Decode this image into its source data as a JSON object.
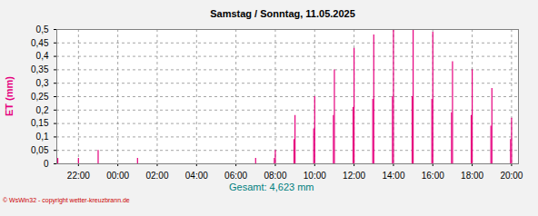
{
  "chart_data": {
    "type": "spike",
    "title": "Samstag / Sonntag, 11.05.2025",
    "y_label": "ET (mm)",
    "annotations": [
      "Gesamt: 4,623 mm",
      "© WsWin32 - copyright wetter-kreuzbrann.de"
    ],
    "color": "#e6007e",
    "x": [
      -3.05,
      -2,
      -1,
      1,
      7,
      7.95,
      8,
      8.95,
      9,
      9.95,
      10,
      10.95,
      11,
      11.95,
      12,
      12.95,
      13,
      13.95,
      14,
      14.95,
      15,
      15.95,
      16,
      16.95,
      17,
      17.95,
      18,
      18.95,
      19,
      19.95,
      20
    ],
    "values": [
      0.02,
      0.02,
      0.05,
      0.02,
      0.02,
      0.02,
      0.05,
      0.09,
      0.18,
      0.13,
      0.25,
      0.18,
      0.35,
      0.21,
      0.43,
      0.24,
      0.48,
      0.25,
      0.5,
      0.25,
      0.5,
      0.24,
      0.49,
      0.19,
      0.38,
      0.18,
      0.35,
      0.14,
      0.28,
      0.09,
      0.17
    ],
    "xlim": [
      -3.1,
      20.35
    ],
    "xticks": [
      {
        "value": -2,
        "label": "22:00"
      },
      {
        "value": 0,
        "label": "00:00"
      },
      {
        "value": 2,
        "label": "02:00"
      },
      {
        "value": 4,
        "label": "04:00"
      },
      {
        "value": 6,
        "label": "06:00"
      },
      {
        "value": 8,
        "label": "08:00"
      },
      {
        "value": 10,
        "label": "10:00"
      },
      {
        "value": 12,
        "label": "12:00"
      },
      {
        "value": 14,
        "label": "14:00"
      },
      {
        "value": 16,
        "label": "16:00"
      },
      {
        "value": 18,
        "label": "18:00"
      },
      {
        "value": 20,
        "label": "20:00"
      }
    ],
    "ylim": [
      0,
      0.5
    ],
    "yticks": [
      0,
      {
        "value": 0.05,
        "label": "0,05"
      },
      {
        "value": 0.1,
        "label": "0,1"
      },
      {
        "value": 0.15,
        "label": "0,15"
      },
      {
        "value": 0.2,
        "label": "0,2"
      },
      {
        "value": 0.25,
        "label": "0,25"
      },
      {
        "value": 0.3,
        "label": "0,3"
      },
      {
        "value": 0.35,
        "label": "0,35"
      },
      {
        "value": 0.4,
        "label": "0,4"
      },
      {
        "value": 0.45,
        "label": "0,45"
      },
      {
        "value": 0.5,
        "label": "0,5"
      }
    ],
    "grid": true
  }
}
